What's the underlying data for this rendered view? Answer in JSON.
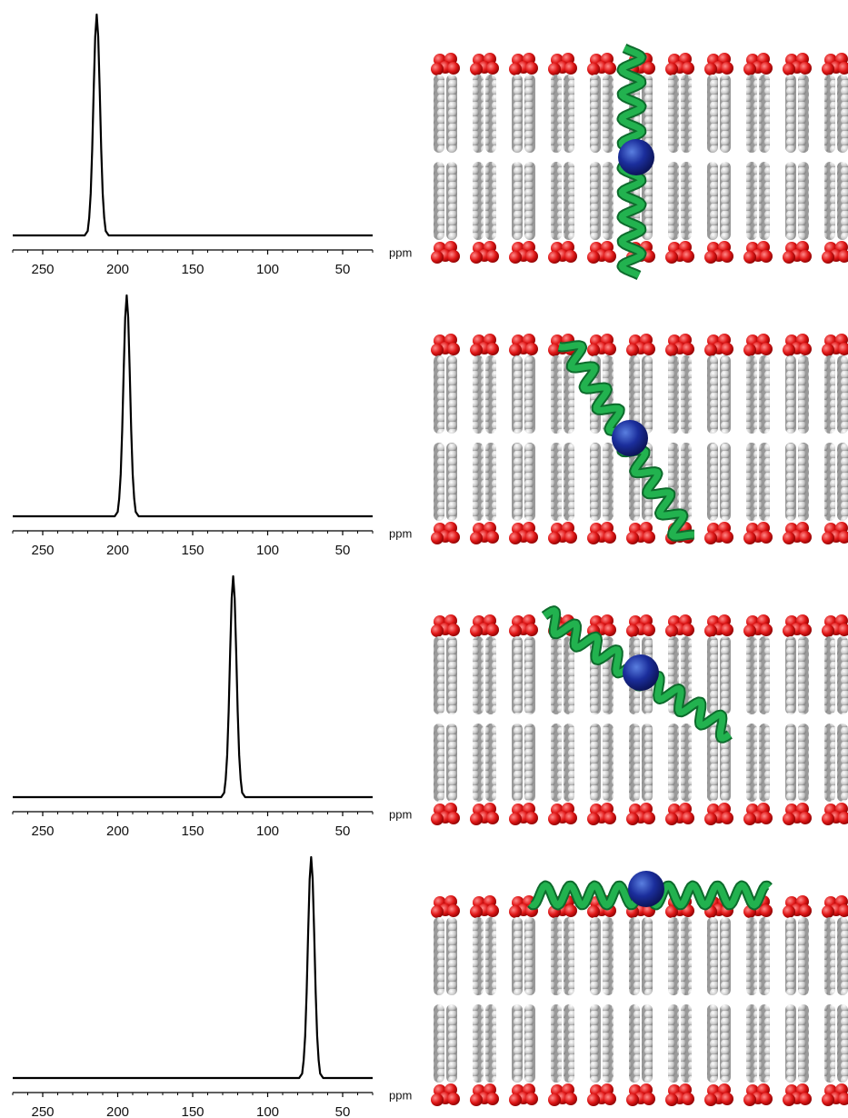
{
  "chart_data": [
    {
      "type": "line",
      "xlabel": "ppm",
      "color": "#000000",
      "x": [
        270,
        222,
        220,
        219,
        218,
        217,
        216,
        215,
        214,
        213,
        212,
        211,
        210,
        209,
        208,
        206,
        30
      ],
      "values": [
        0,
        0,
        2,
        8,
        19,
        39,
        66,
        90,
        100,
        90,
        66,
        39,
        19,
        8,
        2,
        0,
        0
      ],
      "xlim": [
        270,
        30
      ],
      "ylim": [
        0,
        100
      ],
      "xticks": [
        250,
        200,
        150,
        100,
        50
      ],
      "minor_xticks": [
        270,
        260,
        240,
        230,
        220,
        210,
        190,
        180,
        170,
        160,
        140,
        130,
        120,
        110,
        90,
        80,
        70,
        60,
        40,
        30
      ]
    },
    {
      "type": "line",
      "xlabel": "ppm",
      "color": "#000000",
      "x": [
        270,
        202,
        200,
        199,
        198,
        197,
        196,
        195,
        194,
        193,
        192,
        191,
        190,
        189,
        188,
        186,
        30
      ],
      "values": [
        0,
        0,
        2,
        8,
        19,
        39,
        66,
        90,
        100,
        90,
        66,
        39,
        19,
        8,
        2,
        0,
        0
      ],
      "xlim": [
        270,
        30
      ],
      "ylim": [
        0,
        100
      ],
      "xticks": [
        250,
        200,
        150,
        100,
        50
      ],
      "minor_xticks": [
        270,
        260,
        240,
        230,
        220,
        210,
        190,
        180,
        170,
        160,
        140,
        130,
        120,
        110,
        90,
        80,
        70,
        60,
        40,
        30
      ]
    },
    {
      "type": "line",
      "xlabel": "ppm",
      "color": "#000000",
      "x": [
        270,
        131,
        129,
        128,
        127,
        126,
        125,
        124,
        123,
        122,
        121,
        120,
        119,
        118,
        117,
        115,
        30
      ],
      "values": [
        0,
        0,
        2,
        8,
        19,
        39,
        66,
        90,
        100,
        90,
        66,
        39,
        19,
        8,
        2,
        0,
        0
      ],
      "xlim": [
        270,
        30
      ],
      "ylim": [
        0,
        100
      ],
      "xticks": [
        250,
        200,
        150,
        100,
        50
      ],
      "minor_xticks": [
        270,
        260,
        240,
        230,
        220,
        210,
        190,
        180,
        170,
        160,
        140,
        130,
        120,
        110,
        90,
        80,
        70,
        60,
        40,
        30
      ]
    },
    {
      "type": "line",
      "xlabel": "ppm",
      "color": "#000000",
      "x": [
        270,
        79,
        77,
        76,
        75,
        74,
        73,
        72,
        71,
        70,
        69,
        68,
        67,
        66,
        65,
        63,
        30
      ],
      "values": [
        0,
        0,
        2,
        8,
        19,
        39,
        66,
        90,
        100,
        90,
        66,
        39,
        19,
        8,
        2,
        0,
        0
      ],
      "xlim": [
        270,
        30
      ],
      "ylim": [
        0,
        100
      ],
      "xticks": [
        250,
        200,
        150,
        100,
        50
      ],
      "minor_xticks": [
        270,
        260,
        240,
        230,
        220,
        210,
        190,
        180,
        170,
        160,
        140,
        130,
        120,
        110,
        90,
        80,
        70,
        60,
        40,
        30
      ]
    }
  ]
}
